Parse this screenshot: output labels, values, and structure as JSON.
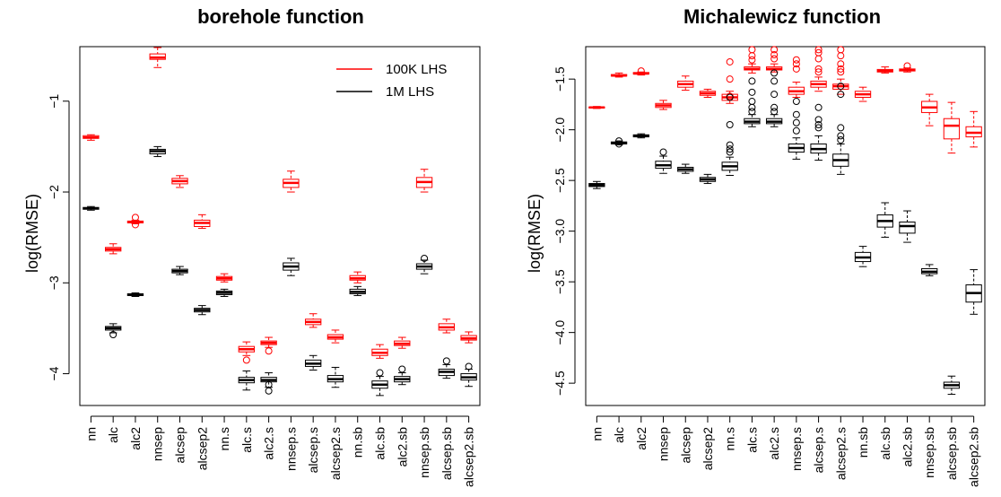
{
  "chart_data": [
    {
      "type": "boxplot",
      "title": "borehole function",
      "xlabel": "",
      "ylabel": "log(RMSE)",
      "ylim": [
        -4.35,
        -0.4
      ],
      "yticks": [
        -4,
        -3,
        -2,
        -1
      ],
      "y_tick_labels": [
        "−4",
        "−3",
        "−2",
        "−1"
      ],
      "categories": [
        "nn",
        "alc",
        "alc2",
        "nnsep",
        "alcsep",
        "alcsep2",
        "nn.s",
        "alc.s",
        "alc2.s",
        "nnsep.s",
        "alcsep.s",
        "alcsep2.s",
        "nn.sb",
        "alc.sb",
        "alc2.sb",
        "nnsep.sb",
        "alcsep.sb",
        "alcsep2.sb"
      ],
      "legend_position": "top-right",
      "colors": {
        "100K LHS": "#ff0000",
        "1M LHS": "#000000"
      },
      "series": [
        {
          "name": "100K LHS",
          "boxes": [
            {
              "lw": -1.43,
              "q1": -1.41,
              "med": -1.4,
              "q3": -1.38,
              "uw": -1.37,
              "out": []
            },
            {
              "lw": -2.68,
              "q1": -2.65,
              "med": -2.63,
              "q3": -2.61,
              "uw": -2.57,
              "out": []
            },
            {
              "lw": -2.35,
              "q1": -2.34,
              "med": -2.33,
              "q3": -2.32,
              "uw": -2.31,
              "out": [
                -2.28,
                -2.36
              ]
            },
            {
              "lw": -0.63,
              "q1": -0.54,
              "med": -0.52,
              "q3": -0.48,
              "uw": -0.41,
              "out": []
            },
            {
              "lw": -1.95,
              "q1": -1.91,
              "med": -1.88,
              "q3": -1.85,
              "uw": -1.82,
              "out": []
            },
            {
              "lw": -2.4,
              "q1": -2.38,
              "med": -2.34,
              "q3": -2.31,
              "uw": -2.25,
              "out": []
            },
            {
              "lw": -2.99,
              "q1": -2.97,
              "med": -2.95,
              "q3": -2.93,
              "uw": -2.9,
              "out": []
            },
            {
              "lw": -3.8,
              "q1": -3.76,
              "med": -3.73,
              "q3": -3.7,
              "uw": -3.65,
              "out": [
                -3.85
              ]
            },
            {
              "lw": -3.71,
              "q1": -3.68,
              "med": -3.66,
              "q3": -3.64,
              "uw": -3.6,
              "out": [
                -3.75
              ]
            },
            {
              "lw": -2.0,
              "q1": -1.95,
              "med": -1.9,
              "q3": -1.86,
              "uw": -1.77,
              "out": []
            },
            {
              "lw": -3.49,
              "q1": -3.46,
              "med": -3.43,
              "q3": -3.4,
              "uw": -3.34,
              "out": []
            },
            {
              "lw": -3.66,
              "q1": -3.62,
              "med": -3.6,
              "q3": -3.57,
              "uw": -3.52,
              "out": []
            },
            {
              "lw": -3.0,
              "q1": -2.97,
              "med": -2.95,
              "q3": -2.92,
              "uw": -2.88,
              "out": []
            },
            {
              "lw": -3.83,
              "q1": -3.8,
              "med": -3.77,
              "q3": -3.73,
              "uw": -3.68,
              "out": []
            },
            {
              "lw": -3.72,
              "q1": -3.69,
              "med": -3.67,
              "q3": -3.64,
              "uw": -3.6,
              "out": []
            },
            {
              "lw": -2.0,
              "q1": -1.95,
              "med": -1.89,
              "q3": -1.84,
              "uw": -1.75,
              "out": []
            },
            {
              "lw": -3.55,
              "q1": -3.52,
              "med": -3.49,
              "q3": -3.45,
              "uw": -3.4,
              "out": []
            },
            {
              "lw": -3.66,
              "q1": -3.63,
              "med": -3.61,
              "q3": -3.58,
              "uw": -3.54,
              "out": []
            }
          ]
        },
        {
          "name": "1M LHS",
          "boxes": [
            {
              "lw": -2.2,
              "q1": -2.19,
              "med": -2.18,
              "q3": -2.17,
              "uw": -2.16,
              "out": []
            },
            {
              "lw": -3.55,
              "q1": -3.52,
              "med": -3.5,
              "q3": -3.48,
              "uw": -3.45,
              "out": [
                -3.57
              ]
            },
            {
              "lw": -3.15,
              "q1": -3.14,
              "med": -3.13,
              "q3": -3.12,
              "uw": -3.11,
              "out": []
            },
            {
              "lw": -1.61,
              "q1": -1.58,
              "med": -1.55,
              "q3": -1.53,
              "uw": -1.5,
              "out": []
            },
            {
              "lw": -2.91,
              "q1": -2.89,
              "med": -2.87,
              "q3": -2.85,
              "uw": -2.82,
              "out": []
            },
            {
              "lw": -3.35,
              "q1": -3.32,
              "med": -3.3,
              "q3": -3.28,
              "uw": -3.25,
              "out": []
            },
            {
              "lw": -3.15,
              "q1": -3.13,
              "med": -3.11,
              "q3": -3.09,
              "uw": -3.07,
              "out": []
            },
            {
              "lw": -4.18,
              "q1": -4.1,
              "med": -4.07,
              "q3": -4.04,
              "uw": -3.97,
              "out": []
            },
            {
              "lw": -4.15,
              "q1": -4.09,
              "med": -4.07,
              "q3": -4.04,
              "uw": -3.99,
              "out": [
                -4.12,
                -4.19
              ]
            },
            {
              "lw": -2.92,
              "q1": -2.86,
              "med": -2.82,
              "q3": -2.78,
              "uw": -2.73,
              "out": []
            },
            {
              "lw": -3.96,
              "q1": -3.92,
              "med": -3.89,
              "q3": -3.85,
              "uw": -3.8,
              "out": []
            },
            {
              "lw": -4.15,
              "q1": -4.09,
              "med": -4.06,
              "q3": -4.02,
              "uw": -3.93,
              "out": []
            },
            {
              "lw": -3.14,
              "q1": -3.12,
              "med": -3.1,
              "q3": -3.07,
              "uw": -3.04,
              "out": []
            },
            {
              "lw": -4.24,
              "q1": -4.16,
              "med": -4.12,
              "q3": -4.08,
              "uw": -4.03,
              "out": [
                -3.99
              ]
            },
            {
              "lw": -4.12,
              "q1": -4.09,
              "med": -4.06,
              "q3": -4.03,
              "uw": -3.99,
              "out": [
                -3.95
              ]
            },
            {
              "lw": -2.9,
              "q1": -2.85,
              "med": -2.82,
              "q3": -2.79,
              "uw": -2.75,
              "out": [
                -2.73
              ]
            },
            {
              "lw": -4.05,
              "q1": -4.02,
              "med": -3.98,
              "q3": -3.95,
              "uw": -3.9,
              "out": [
                -3.86
              ]
            },
            {
              "lw": -4.14,
              "q1": -4.07,
              "med": -4.04,
              "q3": -4.0,
              "uw": -3.95,
              "out": [
                -3.92
              ]
            }
          ]
        }
      ]
    },
    {
      "type": "boxplot",
      "title": "Michalewicz function",
      "xlabel": "",
      "ylabel": "log(RMSE)",
      "ylim": [
        -4.72,
        -1.18
      ],
      "yticks": [
        -4.5,
        -4.0,
        -3.5,
        -3.0,
        -2.5,
        -2.0,
        -1.5
      ],
      "y_tick_labels": [
        "−4.5",
        "−4.0",
        "−3.5",
        "−3.0",
        "−2.5",
        "−2.0",
        "−1.5"
      ],
      "categories": [
        "nn",
        "alc",
        "alc2",
        "nnsep",
        "alcsep",
        "alcsep2",
        "nn.s",
        "alc.s",
        "alc2.s",
        "nnsep.s",
        "alcsep.s",
        "alcsep2.s",
        "nn.sb",
        "alc.sb",
        "alc2.sb",
        "nnsep.sb",
        "alcsep.sb",
        "alcsep2.sb"
      ],
      "colors": {
        "100K LHS": "#ff0000",
        "1M LHS": "#000000"
      },
      "series": [
        {
          "name": "100K LHS",
          "boxes": [
            {
              "lw": -1.79,
              "q1": -1.785,
              "med": -1.78,
              "q3": -1.775,
              "uw": -1.77,
              "out": []
            },
            {
              "lw": -1.48,
              "q1": -1.47,
              "med": -1.465,
              "q3": -1.455,
              "uw": -1.44,
              "out": []
            },
            {
              "lw": -1.46,
              "q1": -1.45,
              "med": -1.445,
              "q3": -1.435,
              "uw": -1.43,
              "out": [
                -1.42
              ]
            },
            {
              "lw": -1.8,
              "q1": -1.78,
              "med": -1.76,
              "q3": -1.74,
              "uw": -1.71,
              "out": []
            },
            {
              "lw": -1.61,
              "q1": -1.58,
              "med": -1.55,
              "q3": -1.52,
              "uw": -1.47,
              "out": []
            },
            {
              "lw": -1.68,
              "q1": -1.66,
              "med": -1.64,
              "q3": -1.62,
              "uw": -1.6,
              "out": []
            },
            {
              "lw": -1.74,
              "q1": -1.71,
              "med": -1.68,
              "q3": -1.65,
              "uw": -1.62,
              "out": [
                -1.5,
                -1.33,
                -1.67
              ]
            },
            {
              "lw": -1.44,
              "q1": -1.41,
              "med": -1.4,
              "q3": -1.38,
              "uw": -1.35,
              "out": [
                -1.31,
                -1.27,
                -1.21
              ]
            },
            {
              "lw": -1.43,
              "q1": -1.41,
              "med": -1.4,
              "q3": -1.38,
              "uw": -1.35,
              "out": [
                -1.3,
                -1.26,
                -1.21
              ]
            },
            {
              "lw": -1.68,
              "q1": -1.65,
              "med": -1.62,
              "q3": -1.58,
              "uw": -1.53,
              "out": [
                -1.4,
                -1.35,
                -1.31
              ]
            },
            {
              "lw": -1.62,
              "q1": -1.58,
              "med": -1.55,
              "q3": -1.52,
              "uw": -1.48,
              "out": [
                -1.43,
                -1.4,
                -1.3,
                -1.24,
                -1.21
              ]
            },
            {
              "lw": -1.65,
              "q1": -1.6,
              "med": -1.57,
              "q3": -1.55,
              "uw": -1.5,
              "out": [
                -1.43,
                -1.4,
                -1.35,
                -1.27,
                -1.21
              ]
            },
            {
              "lw": -1.72,
              "q1": -1.68,
              "med": -1.65,
              "q3": -1.62,
              "uw": -1.58,
              "out": []
            },
            {
              "lw": -1.44,
              "q1": -1.43,
              "med": -1.42,
              "q3": -1.405,
              "uw": -1.38,
              "out": []
            },
            {
              "lw": -1.43,
              "q1": -1.42,
              "med": -1.41,
              "q3": -1.4,
              "uw": -1.39,
              "out": [
                -1.37
              ]
            },
            {
              "lw": -1.96,
              "q1": -1.83,
              "med": -1.78,
              "q3": -1.72,
              "uw": -1.65,
              "out": []
            },
            {
              "lw": -2.23,
              "q1": -2.09,
              "med": -1.96,
              "q3": -1.89,
              "uw": -1.73,
              "out": []
            },
            {
              "lw": -2.17,
              "q1": -2.07,
              "med": -2.03,
              "q3": -1.97,
              "uw": -1.82,
              "out": []
            }
          ]
        },
        {
          "name": "1M LHS",
          "boxes": [
            {
              "lw": -2.58,
              "q1": -2.56,
              "med": -2.545,
              "q3": -2.53,
              "uw": -2.51,
              "out": []
            },
            {
              "lw": -2.15,
              "q1": -2.14,
              "med": -2.13,
              "q3": -2.12,
              "uw": -2.11,
              "out": [
                -2.11,
                -2.14
              ]
            },
            {
              "lw": -2.08,
              "q1": -2.07,
              "med": -2.06,
              "q3": -2.05,
              "uw": -2.04,
              "out": []
            },
            {
              "lw": -2.43,
              "q1": -2.38,
              "med": -2.35,
              "q3": -2.31,
              "uw": -2.26,
              "out": [
                -2.22
              ]
            },
            {
              "lw": -2.43,
              "q1": -2.41,
              "med": -2.39,
              "q3": -2.37,
              "uw": -2.34,
              "out": []
            },
            {
              "lw": -2.53,
              "q1": -2.51,
              "med": -2.49,
              "q3": -2.47,
              "uw": -2.44,
              "out": []
            },
            {
              "lw": -2.45,
              "q1": -2.4,
              "med": -2.36,
              "q3": -2.32,
              "uw": -2.27,
              "out": [
                -2.19,
                -2.15,
                -2.22,
                -1.95,
                -1.68
              ]
            },
            {
              "lw": -1.97,
              "q1": -1.94,
              "med": -1.92,
              "q3": -1.89,
              "uw": -1.85,
              "out": [
                -1.82,
                -1.78,
                -1.72,
                -1.63,
                -1.52
              ]
            },
            {
              "lw": -1.97,
              "q1": -1.94,
              "med": -1.92,
              "q3": -1.89,
              "uw": -1.85,
              "out": [
                -1.82,
                -1.78,
                -1.65,
                -1.52,
                -1.44
              ]
            },
            {
              "lw": -2.29,
              "q1": -2.22,
              "med": -2.18,
              "q3": -2.14,
              "uw": -2.08,
              "out": [
                -2.01,
                -1.93,
                -1.85,
                -1.72
              ]
            },
            {
              "lw": -2.3,
              "q1": -2.23,
              "med": -2.19,
              "q3": -2.14,
              "uw": -2.06,
              "out": [
                -1.98,
                -1.95,
                -1.9,
                -1.78
              ]
            },
            {
              "lw": -2.44,
              "q1": -2.36,
              "med": -2.3,
              "q3": -2.24,
              "uw": -2.14,
              "out": [
                -2.1,
                -2.06,
                -1.98,
                -1.65,
                -1.57
              ]
            },
            {
              "lw": -3.35,
              "q1": -3.3,
              "med": -3.26,
              "q3": -3.21,
              "uw": -3.15,
              "out": []
            },
            {
              "lw": -3.06,
              "q1": -2.96,
              "med": -2.9,
              "q3": -2.84,
              "uw": -2.72,
              "out": []
            },
            {
              "lw": -3.11,
              "q1": -3.02,
              "med": -2.95,
              "q3": -2.91,
              "uw": -2.8,
              "out": []
            },
            {
              "lw": -3.44,
              "q1": -3.42,
              "med": -3.4,
              "q3": -3.37,
              "uw": -3.33,
              "out": []
            },
            {
              "lw": -4.61,
              "q1": -4.55,
              "med": -4.52,
              "q3": -4.49,
              "uw": -4.43,
              "out": []
            },
            {
              "lw": -3.82,
              "q1": -3.7,
              "med": -3.61,
              "q3": -3.53,
              "uw": -3.38,
              "out": []
            }
          ]
        }
      ]
    }
  ]
}
